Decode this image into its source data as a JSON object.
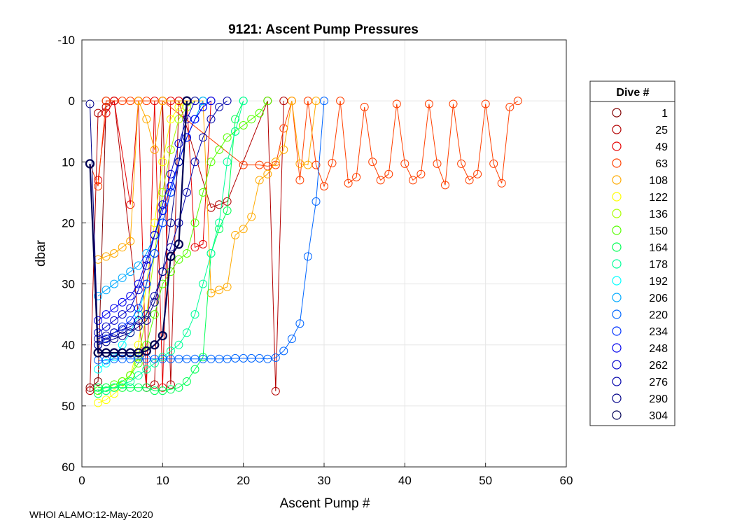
{
  "footer": "WHOI ALAMO:12-May-2020",
  "chart_data": {
    "type": "line",
    "title": "9121: Ascent Pump Pressures",
    "xlabel": "Ascent Pump #",
    "ylabel": "dbar",
    "xlim": [
      0,
      60
    ],
    "ylim": [
      -10,
      60
    ],
    "y_reversed": true,
    "xticks": [
      0,
      10,
      20,
      30,
      40,
      50,
      60
    ],
    "yticks": [
      -10,
      0,
      10,
      20,
      30,
      40,
      50,
      60
    ],
    "grid": true,
    "legend": {
      "title": "Dive #",
      "position": "right-outside"
    },
    "marker": "open-circle",
    "series": [
      {
        "name": "1",
        "color": "#800000",
        "x": [
          1,
          2,
          3,
          4
        ],
        "y": [
          47,
          46,
          0,
          0
        ]
      },
      {
        "name": "25",
        "color": "#b30000",
        "x": [
          1,
          2,
          3,
          4,
          8,
          9,
          10,
          11,
          12,
          16,
          17,
          18,
          23,
          24,
          25
        ],
        "y": [
          47.5,
          2,
          1,
          0,
          47,
          46.5,
          0,
          46.5,
          0,
          17.5,
          17,
          16.5,
          0,
          47.6,
          0
        ]
      },
      {
        "name": "49",
        "color": "#e60000",
        "x": [
          2,
          3,
          4,
          6,
          7,
          8,
          9,
          10,
          11,
          12,
          13,
          14,
          15,
          16
        ],
        "y": [
          13,
          2,
          0,
          17,
          0,
          47,
          0,
          47,
          0,
          0,
          0,
          24,
          23.5,
          0
        ]
      },
      {
        "name": "63",
        "color": "#ff4000",
        "x": [
          1,
          2,
          3,
          5,
          6,
          7,
          8,
          10,
          20,
          22,
          23,
          24,
          25,
          26,
          27,
          28,
          29,
          30,
          31,
          32,
          33,
          34,
          35,
          36,
          37,
          38,
          39,
          40,
          41,
          42,
          43,
          44,
          45,
          46,
          47,
          48,
          49,
          50,
          51,
          52,
          53,
          54
        ],
        "y": [
          10.3,
          14,
          0,
          0,
          0,
          0,
          0,
          0,
          10.5,
          10.5,
          10.7,
          10.5,
          4.5,
          0,
          13,
          0,
          10.5,
          14,
          10.2,
          0,
          13.5,
          12.5,
          1,
          10,
          13,
          12,
          0.5,
          10.3,
          13,
          12,
          0.5,
          10.3,
          13.8,
          0.5,
          10.3,
          13,
          12,
          0.5,
          10.3,
          13.5,
          1,
          0
        ]
      },
      {
        "name": "108",
        "color": "#ffaa00",
        "x": [
          2,
          3,
          4,
          5,
          6,
          7,
          8,
          9,
          10,
          14,
          15,
          16,
          17,
          18,
          19,
          20,
          21,
          22,
          23,
          24,
          25,
          26,
          27,
          28,
          29
        ],
        "y": [
          26,
          25.5,
          25,
          24,
          23,
          0,
          3,
          8,
          0,
          0,
          0,
          31.5,
          31,
          30.5,
          22,
          21,
          19,
          13,
          12,
          10,
          8,
          0,
          10.3,
          10.5,
          0
        ]
      },
      {
        "name": "122",
        "color": "#ffff00",
        "x": [
          2,
          3,
          4,
          5,
          6,
          7,
          8,
          9,
          10,
          11,
          12,
          13
        ],
        "y": [
          49.5,
          49,
          48,
          47,
          45,
          40,
          30,
          20,
          10,
          3,
          1,
          0
        ]
      },
      {
        "name": "136",
        "color": "#aaff00",
        "x": [
          2,
          3,
          4,
          5,
          6,
          7,
          8,
          9,
          10,
          11,
          12,
          13,
          14
        ],
        "y": [
          48,
          47.5,
          47,
          46,
          45,
          42,
          35,
          25,
          15,
          8,
          3,
          1,
          0
        ]
      },
      {
        "name": "150",
        "color": "#55ff00",
        "x": [
          2,
          3,
          4,
          5,
          6,
          7,
          8,
          9,
          10,
          11,
          12,
          13,
          14,
          15,
          16,
          17,
          18,
          19,
          20,
          21,
          22,
          23
        ],
        "y": [
          47.5,
          47,
          46.5,
          46,
          45,
          43,
          40,
          35,
          30,
          28,
          26,
          25,
          20,
          15,
          10,
          8,
          6,
          5,
          4,
          3,
          2,
          0
        ]
      },
      {
        "name": "164",
        "color": "#00ff55",
        "x": [
          2,
          3,
          4,
          5,
          6,
          7,
          8,
          9,
          10,
          11,
          12,
          13,
          14,
          15,
          16,
          17,
          18,
          19,
          20
        ],
        "y": [
          47,
          47,
          47,
          47,
          47,
          47,
          47,
          47.5,
          47.5,
          47.3,
          47,
          46,
          44,
          42,
          25,
          21,
          18,
          3,
          0
        ]
      },
      {
        "name": "178",
        "color": "#00ff99",
        "x": [
          2,
          3,
          4,
          5,
          6,
          7,
          8,
          9,
          10,
          11,
          12,
          13,
          14,
          15,
          16,
          17,
          18,
          19,
          20
        ],
        "y": [
          48,
          47.5,
          47,
          46.5,
          46,
          45,
          44,
          43,
          42,
          41,
          40,
          38,
          35,
          30,
          25,
          20,
          10,
          5,
          0
        ]
      },
      {
        "name": "192",
        "color": "#00ffff",
        "x": [
          2,
          3,
          4,
          5,
          6,
          7,
          8,
          9,
          10,
          11,
          12,
          13,
          14,
          15
        ],
        "y": [
          44,
          43,
          42,
          40,
          38,
          35,
          30,
          25,
          20,
          15,
          10,
          6,
          3,
          0
        ]
      },
      {
        "name": "206",
        "color": "#00aaff",
        "x": [
          2,
          3,
          4,
          5,
          6,
          7,
          8,
          9,
          10,
          11,
          12,
          13,
          14,
          15
        ],
        "y": [
          32,
          31,
          30,
          29,
          28,
          27,
          25,
          22,
          18,
          14,
          10,
          6,
          3,
          0
        ]
      },
      {
        "name": "220",
        "color": "#0066ff",
        "x": [
          2,
          3,
          4,
          5,
          6,
          7,
          8,
          9,
          10,
          11,
          12,
          13,
          14,
          15,
          16,
          17,
          18,
          19,
          20,
          21,
          22,
          23,
          24,
          25,
          26,
          27,
          28,
          29,
          30
        ],
        "y": [
          42.5,
          42.5,
          42.3,
          42.3,
          42.3,
          42.3,
          42.3,
          42.3,
          42.3,
          42.3,
          42.3,
          42.3,
          42.3,
          42.3,
          42.3,
          42.3,
          42.3,
          42.2,
          42.2,
          42.2,
          42.2,
          42.3,
          42.1,
          41,
          39,
          36.5,
          25.5,
          16.5,
          0
        ]
      },
      {
        "name": "234",
        "color": "#0033ff",
        "x": [
          2,
          3,
          4,
          5,
          6,
          7,
          8,
          9,
          10,
          11,
          12,
          13,
          14,
          15,
          16
        ],
        "y": [
          40,
          39,
          38,
          37,
          36,
          34,
          30,
          25,
          20,
          15,
          10,
          6,
          3,
          1,
          0
        ]
      },
      {
        "name": "248",
        "color": "#0000ee",
        "x": [
          2,
          3,
          4,
          5,
          6,
          7,
          8,
          9,
          10,
          11,
          12,
          13,
          14,
          15,
          16
        ],
        "y": [
          36,
          35,
          34,
          33,
          32,
          30,
          26,
          22,
          18,
          14,
          10,
          6,
          3,
          1,
          0
        ]
      },
      {
        "name": "262",
        "color": "#0000cc",
        "x": [
          2,
          3,
          4,
          5,
          6,
          7,
          8,
          9,
          10,
          11,
          12,
          13,
          14
        ],
        "y": [
          38,
          37,
          36,
          35,
          34,
          31,
          27,
          22,
          17,
          12,
          7,
          3,
          0
        ]
      },
      {
        "name": "276",
        "color": "#0000aa",
        "x": [
          2,
          3,
          4,
          5,
          6,
          7,
          8,
          9,
          10,
          11,
          12,
          13,
          14,
          15,
          16,
          17,
          18
        ],
        "y": [
          39,
          38.5,
          38,
          37.5,
          37,
          36,
          35,
          32,
          28,
          24,
          20,
          15,
          10,
          6,
          3,
          1,
          0
        ]
      },
      {
        "name": "290",
        "color": "#000088",
        "x": [
          1,
          2,
          3,
          4,
          5,
          6,
          7,
          8,
          9,
          10,
          11,
          12,
          13
        ],
        "y": [
          0.5,
          40,
          39.5,
          39,
          38.5,
          38,
          37,
          36,
          33,
          28,
          20,
          10,
          0
        ]
      },
      {
        "name": "304",
        "color": "#000055",
        "x": [
          1,
          2,
          3,
          4,
          5,
          6,
          7,
          8,
          9,
          10,
          11,
          12,
          13
        ],
        "y": [
          10.3,
          41.3,
          41.3,
          41.3,
          41.3,
          41.3,
          41.3,
          41,
          40,
          38.5,
          25.5,
          23.5,
          0
        ]
      }
    ]
  }
}
